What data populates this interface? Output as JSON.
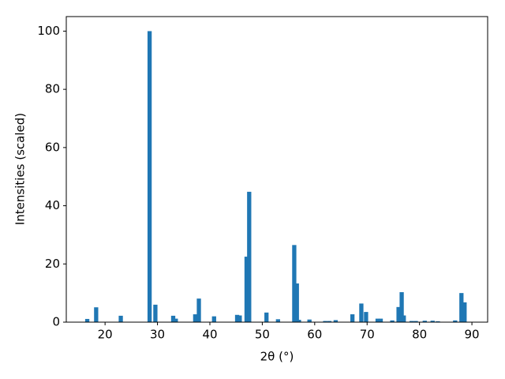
{
  "chart_data": {
    "type": "bar",
    "xlabel": "2θ (°)",
    "ylabel": "Intensities (scaled)",
    "x": [
      16.6,
      18.3,
      23.0,
      28.5,
      29.6,
      33.0,
      33.5,
      37.2,
      37.9,
      40.8,
      45.2,
      45.7,
      47.0,
      47.5,
      50.8,
      53.0,
      56.1,
      56.6,
      57.0,
      59.0,
      62.0,
      62.8,
      64.0,
      67.2,
      68.9,
      69.8,
      72.0,
      72.6,
      74.8,
      76.0,
      76.6,
      77.0,
      78.5,
      79.3,
      81.0,
      82.5,
      83.5,
      86.8,
      88.0,
      88.6
    ],
    "values": [
      1.1,
      5.1,
      2.2,
      100,
      6.0,
      2.2,
      1.2,
      2.7,
      8.1,
      2.0,
      2.5,
      2.3,
      22.5,
      44.8,
      3.3,
      1.0,
      26.5,
      13.3,
      0.8,
      0.9,
      0.4,
      0.4,
      0.7,
      2.7,
      6.4,
      3.5,
      1.2,
      1.2,
      0.6,
      5.2,
      10.3,
      2.3,
      0.4,
      0.4,
      0.5,
      0.5,
      0.3,
      0.6,
      10.0,
      6.8
    ],
    "color": "#1f77b4",
    "xlim": [
      12.6,
      93.0
    ],
    "xticks": [
      20,
      30,
      40,
      50,
      60,
      70,
      80,
      90
    ],
    "ylim": [
      0,
      105
    ],
    "yticks": [
      0,
      20,
      40,
      60,
      80,
      100
    ],
    "grid": false
  }
}
